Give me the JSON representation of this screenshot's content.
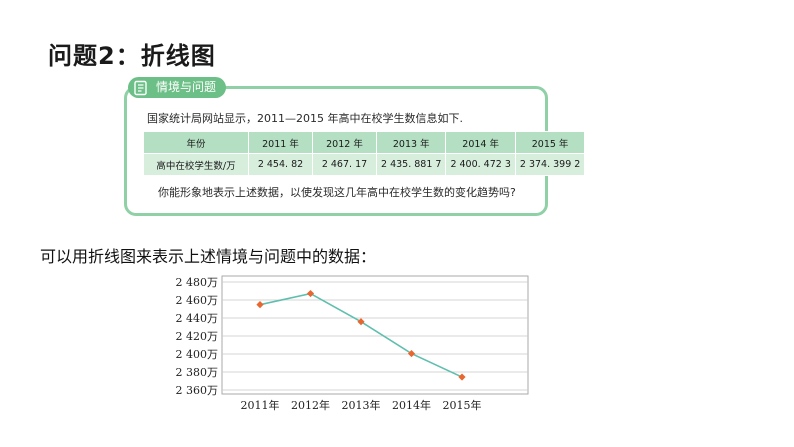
{
  "page": {
    "title": "问题2：折线图",
    "caption": "可以用折线图来表示上述情境与问题中的数据："
  },
  "problem_box": {
    "tab_label": "情境与问题",
    "intro": "国家统计局网站显示，2011—2015 年高中在校学生数信息如下.",
    "question": "你能形象地表示上述数据，以使发现这几年高中在校学生数的变化趋势吗?",
    "table": {
      "header_label": "年份",
      "row_label": "高中在校学生数/万",
      "years": [
        "2011 年",
        "2012 年",
        "2013 年",
        "2014 年",
        "2015 年"
      ],
      "values": [
        "2 454. 82",
        "2 467. 17",
        "2 435. 881 7",
        "2 400. 472 3",
        "2 374. 399 2"
      ]
    }
  },
  "colors": {
    "box_border": "#8fd0a6",
    "tab_fill": "#6cbf86",
    "table_header_fill": "#b4dfc3",
    "table_row_fill": "#d7eedd",
    "line": "#5fbfae",
    "marker": "#e8662f",
    "chart_border": "#a9a9a9"
  },
  "chart_data": {
    "type": "line",
    "categories": [
      "2011年",
      "2012年",
      "2013年",
      "2014年",
      "2015年"
    ],
    "series": [
      {
        "values": [
          2454.82,
          2467.17,
          2435.8817,
          2400.4723,
          2374.3992
        ]
      }
    ],
    "yticks": [
      2360,
      2380,
      2400,
      2420,
      2440,
      2460,
      2480
    ],
    "ytick_labels": [
      "2 360万",
      "2 380万",
      "2 400万",
      "2 420万",
      "2 440万",
      "2 460万",
      "2 480万"
    ],
    "ylim": [
      2360,
      2480
    ],
    "title": "",
    "xlabel": "",
    "ylabel": "",
    "grid": true,
    "marker": "diamond"
  }
}
